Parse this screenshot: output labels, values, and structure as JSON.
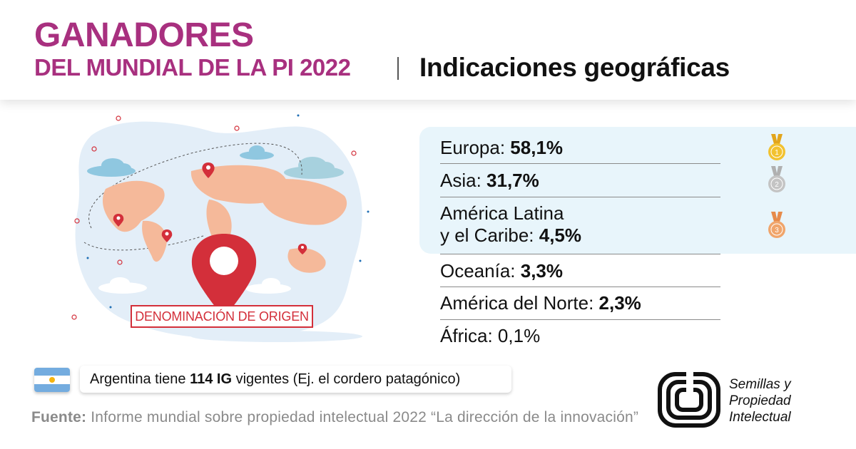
{
  "header": {
    "title_line1": "GANADORES",
    "title_line2": "DEL MUNDIAL DE LA PI 2022",
    "subtitle": "Indicaciones geográficas"
  },
  "illustration": {
    "label": "DENOMINACIÓN DE ORIGEN"
  },
  "ranking": [
    {
      "label": "Europa: ",
      "value": "58,1%",
      "medal": "gold-medal-icon",
      "medal_number": "1"
    },
    {
      "label": "Asia: ",
      "value": "31,7%",
      "medal": "silver-medal-icon",
      "medal_number": "2"
    },
    {
      "label_line1": "América Latina",
      "label": "y el Caribe: ",
      "value": "4,5%",
      "medal": "bronze-medal-icon",
      "medal_number": "3"
    },
    {
      "label": "Oceanía: ",
      "value": "3,3%"
    },
    {
      "label": "América del Norte: ",
      "value": "2,3%"
    },
    {
      "label": "África: ",
      "value": "0,1%"
    }
  ],
  "note": {
    "prefix": "Argentina tiene ",
    "highlight": "114 IG",
    "suffix": " vigentes (Ej. el cordero patagónico)"
  },
  "source": {
    "label": "Fuente:",
    "text": " Informe mundial sobre propiedad intelectual 2022 “La dirección de la innovación”"
  },
  "logo": {
    "line1": "Semillas y",
    "line2": "Propiedad",
    "line3": "Intelectual"
  },
  "colors": {
    "title": "#a8307f",
    "accent_red": "#d32f3a",
    "map_land": "#f5b99a",
    "blob": "#e3eef8",
    "highlight": "#e8f5fb",
    "gold": "#f2c230",
    "silver": "#c4c4c4",
    "bronze": "#f0a56b"
  }
}
